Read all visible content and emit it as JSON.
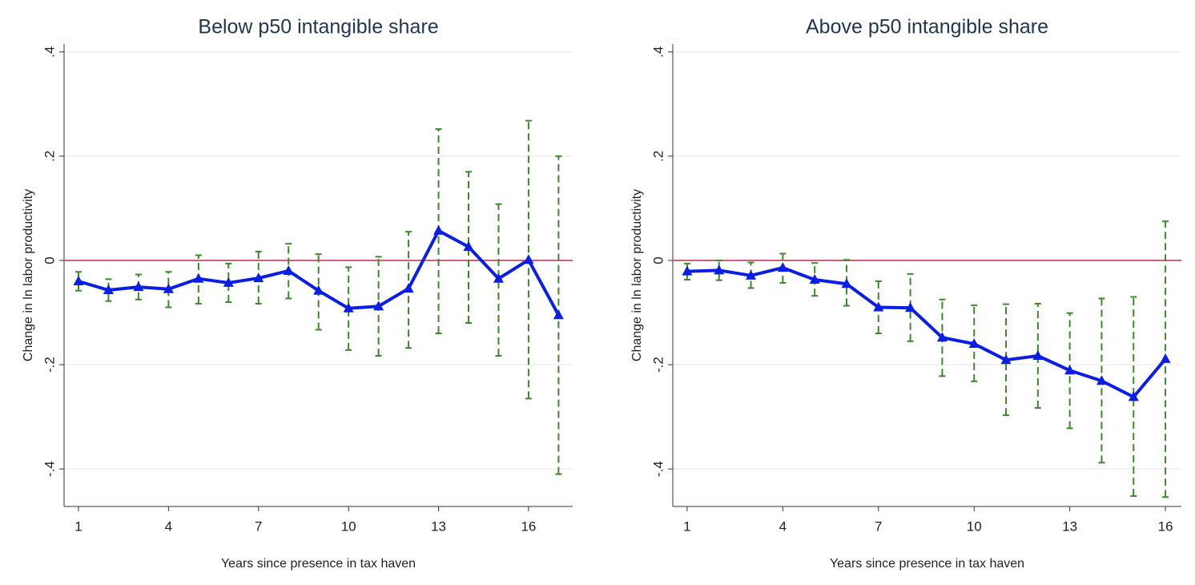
{
  "chart_data": [
    {
      "type": "line",
      "title": "Below p50 intangible share",
      "x_label": "Years since presence in tax haven",
      "y_label": "Change in ln labor productivity",
      "x": [
        1,
        2,
        3,
        4,
        5,
        6,
        7,
        8,
        9,
        10,
        11,
        12,
        13,
        14,
        15,
        16,
        17
      ],
      "series": [
        {
          "color": "#0a1ee6",
          "ci_color": "#3a8a2a",
          "values": [
            -0.04,
            -0.057,
            -0.051,
            -0.055,
            -0.035,
            -0.043,
            -0.034,
            -0.02,
            -0.058,
            -0.092,
            -0.088,
            -0.054,
            0.057,
            0.026,
            -0.035,
            0.001,
            -0.105
          ],
          "ci_low": [
            -0.058,
            -0.078,
            -0.075,
            -0.09,
            -0.083,
            -0.08,
            -0.083,
            -0.073,
            -0.133,
            -0.172,
            -0.183,
            -0.168,
            -0.14,
            -0.12,
            -0.183,
            -0.265,
            -0.41
          ],
          "ci_high": [
            -0.022,
            -0.036,
            -0.027,
            -0.022,
            0.01,
            -0.006,
            0.017,
            0.032,
            0.012,
            -0.013,
            0.007,
            0.055,
            0.252,
            0.17,
            0.108,
            0.268,
            0.2
          ]
        }
      ],
      "reference_line": {
        "value": 0,
        "color": "#d0607a"
      },
      "xlim": [
        0.52,
        17.47
      ],
      "xticks": [
        1,
        4,
        7,
        10,
        13,
        16
      ],
      "ylim": [
        -0.472,
        0.415
      ],
      "yticks": [
        {
          "value": -0.4,
          "label": "-.4"
        },
        {
          "value": -0.2,
          "label": "-.2"
        },
        0,
        {
          "value": 0.2,
          "label": ".2"
        },
        {
          "value": 0.4,
          "label": ".4"
        }
      ],
      "grid": true
    },
    {
      "type": "line",
      "title": "Above p50 intangible share",
      "x_label": "Years since presence in tax haven",
      "y_label": "Change in ln labor productivity",
      "x": [
        1,
        2,
        3,
        4,
        5,
        6,
        7,
        8,
        9,
        10,
        11,
        12,
        13,
        14,
        15,
        16
      ],
      "series": [
        {
          "color": "#0a1ee6",
          "ci_color": "#3a8a2a",
          "values": [
            -0.021,
            -0.019,
            -0.029,
            -0.014,
            -0.037,
            -0.045,
            -0.09,
            -0.091,
            -0.148,
            -0.16,
            -0.191,
            -0.183,
            -0.211,
            -0.231,
            -0.262,
            -0.189
          ],
          "ci_low": [
            -0.037,
            -0.038,
            -0.053,
            -0.043,
            -0.068,
            -0.087,
            -0.14,
            -0.155,
            -0.222,
            -0.232,
            -0.297,
            -0.283,
            -0.322,
            -0.388,
            -0.452,
            -0.454
          ],
          "ci_high": [
            -0.006,
            0,
            -0.004,
            0.013,
            -0.005,
            0.001,
            -0.04,
            -0.026,
            -0.075,
            -0.086,
            -0.084,
            -0.083,
            -0.101,
            -0.073,
            -0.07,
            0.075
          ]
        }
      ],
      "reference_line": {
        "value": 0,
        "color": "#d0607a"
      },
      "xlim": [
        0.55,
        16.5
      ],
      "xticks": [
        1,
        4,
        7,
        10,
        13,
        16
      ],
      "ylim": [
        -0.472,
        0.415
      ],
      "yticks": [
        {
          "value": -0.4,
          "label": "-.4"
        },
        {
          "value": -0.2,
          "label": "-.2"
        },
        0,
        {
          "value": 0.2,
          "label": ".2"
        },
        {
          "value": 0.4,
          "label": ".4"
        }
      ],
      "grid": true
    }
  ]
}
